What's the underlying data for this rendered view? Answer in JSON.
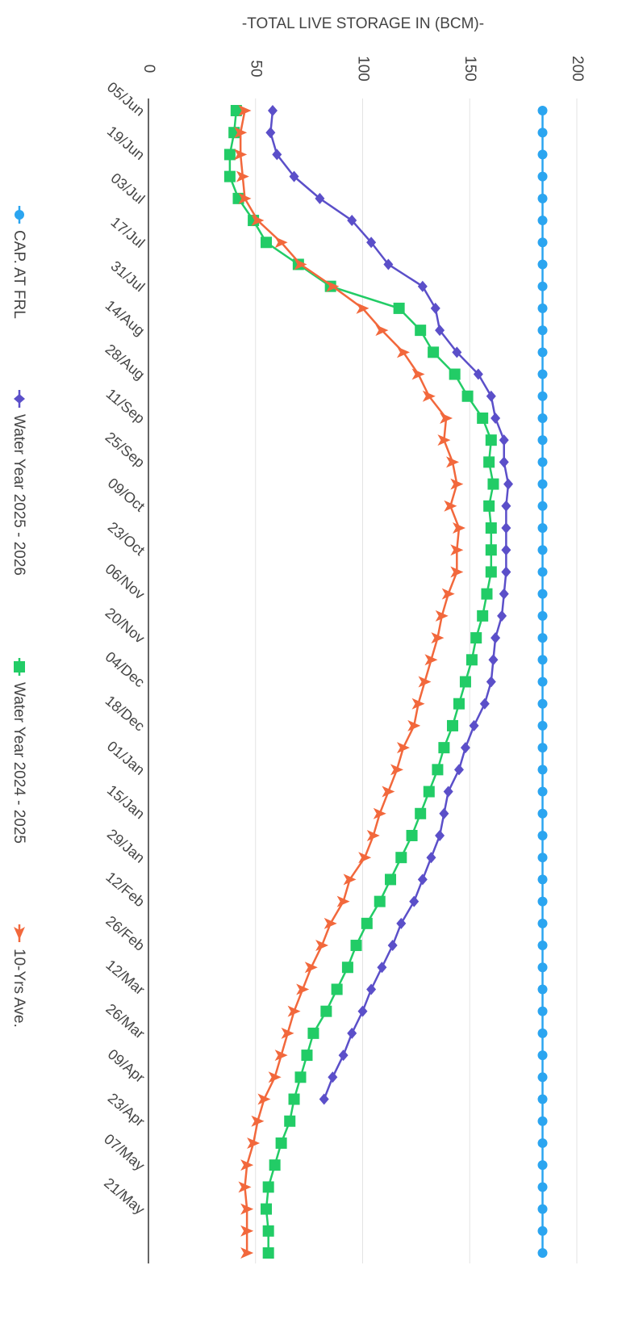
{
  "chart_data": {
    "type": "line",
    "title": "-TOTAL LIVE STORAGE IN (BCM)-",
    "categories": [
      "05/Jun",
      null,
      "19/Jun",
      null,
      "03/Jul",
      null,
      "17/Jul",
      null,
      "31/Jul",
      null,
      "14/Aug",
      null,
      "28/Aug",
      null,
      "11/Sep",
      null,
      "25/Sep",
      null,
      "09/Oct",
      null,
      "23/Oct",
      null,
      "06/Nov",
      null,
      "20/Nov",
      null,
      "04/Dec",
      null,
      "18/Dec",
      null,
      "01/Jan",
      null,
      "15/Jan",
      null,
      "29/Jan",
      null,
      "12/Feb",
      null,
      "26/Feb",
      null,
      "12/Mar",
      null,
      "26/Mar",
      null,
      "09/Apr",
      null,
      "23/Apr",
      null,
      "07/May",
      null,
      "21/May",
      null,
      null
    ],
    "ylim": [
      0,
      200
    ],
    "yticks": [
      0,
      50,
      100,
      150,
      200
    ],
    "grid": true,
    "series": [
      {
        "name": "CAP. AT FRL",
        "color": "#2ba5f0",
        "marker": "circle",
        "values": [
          184,
          184,
          184,
          184,
          184,
          184,
          184,
          184,
          184,
          184,
          184,
          184,
          184,
          184,
          184,
          184,
          184,
          184,
          184,
          184,
          184,
          184,
          184,
          184,
          184,
          184,
          184,
          184,
          184,
          184,
          184,
          184,
          184,
          184,
          184,
          184,
          184,
          184,
          184,
          184,
          184,
          184,
          184,
          184,
          184,
          184,
          184,
          184,
          184,
          184,
          184,
          184,
          184
        ]
      },
      {
        "name": "Water Year 2025 - 2026",
        "color": "#5b4fc9",
        "marker": "diamond",
        "values": [
          58,
          57,
          60,
          68,
          80,
          95,
          104,
          112,
          128,
          134,
          136,
          144,
          154,
          160,
          162,
          166,
          166,
          168,
          167,
          167,
          167,
          167,
          166,
          165,
          162,
          161,
          160,
          157,
          152,
          148,
          145,
          140,
          138,
          136,
          132,
          128,
          124,
          118,
          114,
          109,
          104,
          100,
          95,
          91,
          86,
          82,
          null,
          null,
          null,
          null,
          null,
          null,
          null
        ]
      },
      {
        "name": "Water Year 2024 - 2025",
        "color": "#22cc66",
        "marker": "square",
        "values": [
          41,
          40,
          38,
          38,
          42,
          49,
          55,
          70,
          85,
          117,
          127,
          133,
          143,
          149,
          156,
          160,
          159,
          161,
          159,
          160,
          160,
          160,
          158,
          156,
          153,
          151,
          148,
          145,
          142,
          138,
          135,
          131,
          127,
          123,
          118,
          113,
          108,
          102,
          97,
          93,
          88,
          83,
          77,
          74,
          71,
          68,
          66,
          62,
          59,
          56,
          55,
          56,
          56
        ]
      },
      {
        "name": "10-Yrs Ave.",
        "color": "#f2683c",
        "marker": "triangle",
        "values": [
          45,
          43,
          43,
          44,
          45,
          51,
          62,
          71,
          86,
          100,
          109,
          119,
          126,
          131,
          139,
          138,
          142,
          144,
          141,
          145,
          144,
          144,
          140,
          137,
          135,
          132,
          129,
          126,
          124,
          119,
          116,
          112,
          108,
          105,
          101,
          94,
          91,
          85,
          81,
          76,
          72,
          68,
          65,
          62,
          59,
          54,
          51,
          49,
          46,
          45,
          46,
          46,
          46
        ]
      }
    ]
  }
}
